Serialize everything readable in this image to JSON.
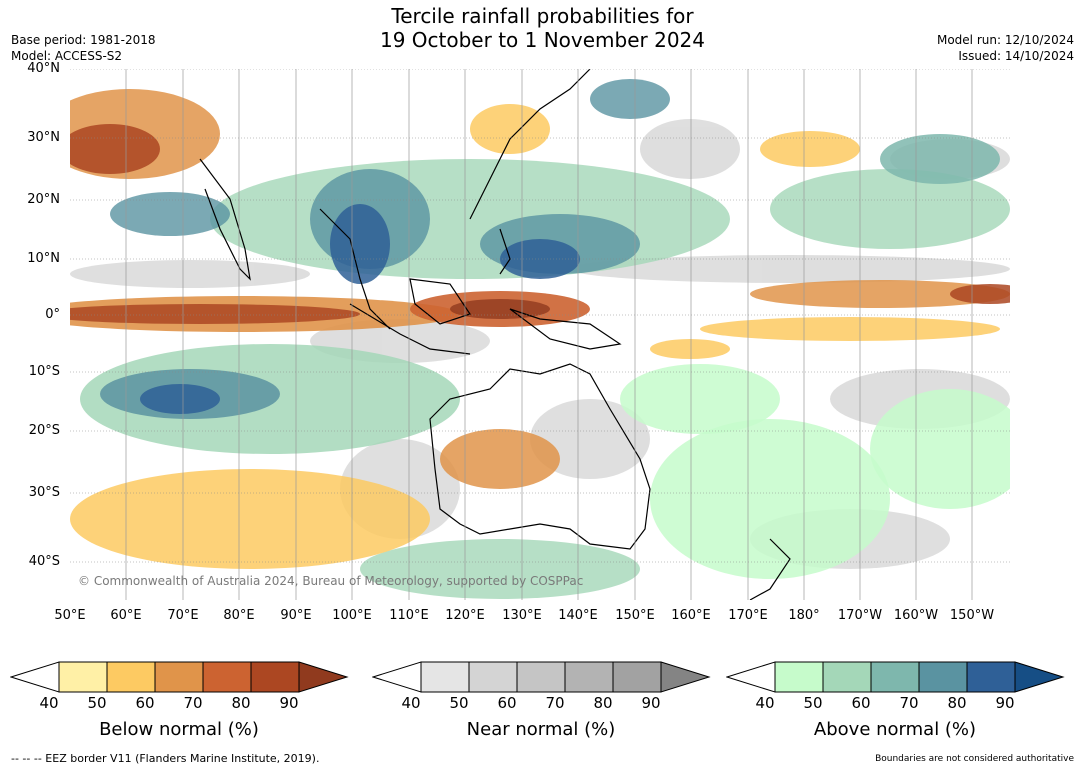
{
  "header": {
    "title_line1": "Tercile rainfall probabilities for",
    "title_line2": "19 October to 1 November 2024",
    "base_period": "Base period: 1981-2018",
    "model": "Model: ACCESS-S2",
    "model_run": "Model run: 12/10/2024",
    "issued": "Issued: 14/10/2024"
  },
  "map": {
    "copyright": "© Commonwealth of Australia 2024, Bureau of Meteorology, supported by COSPPac",
    "lat_labels": [
      "40°N",
      "30°N",
      "20°N",
      "10°N",
      "0°",
      "10°S",
      "20°S",
      "30°S",
      "40°S"
    ],
    "lon_labels": [
      "50°E",
      "60°E",
      "70°E",
      "80°E",
      "90°E",
      "100°E",
      "110°E",
      "120°E",
      "130°E",
      "140°E",
      "150°E",
      "160°E",
      "170°E",
      "180°",
      "170°W",
      "160°W",
      "150°W"
    ]
  },
  "colorbars": [
    {
      "name": "below",
      "title": "Below normal (%)",
      "ticks": [
        "40",
        "50",
        "60",
        "70",
        "80",
        "90"
      ],
      "colors": [
        "#fff0a6",
        "#fdca62",
        "#e0944a",
        "#cc6331",
        "#ac4722",
        "#903a1e"
      ]
    },
    {
      "name": "near",
      "title": "Near normal (%)",
      "ticks": [
        "40",
        "50",
        "60",
        "70",
        "80",
        "90"
      ],
      "colors": [
        "#e5e5e5",
        "#d4d4d4",
        "#c5c5c5",
        "#b3b3b3",
        "#a2a2a2",
        "#848484"
      ]
    },
    {
      "name": "above",
      "title": "Above normal (%)",
      "ticks": [
        "40",
        "50",
        "60",
        "70",
        "80",
        "90"
      ],
      "colors": [
        "#c6fbcb",
        "#a4d7b8",
        "#7eb7ad",
        "#5a93a1",
        "#2f6097",
        "#164e85"
      ]
    }
  ],
  "footer": {
    "eez": "--  --  -- EEZ border V11 (Flanders Marine Institute, 2019).",
    "disclaimer": "Boundaries are not considered authoritative"
  }
}
